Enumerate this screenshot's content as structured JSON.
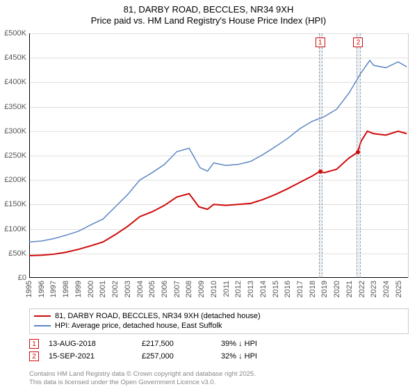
{
  "title": {
    "line1": "81, DARBY ROAD, BECCLES, NR34 9XH",
    "line2": "Price paid vs. HM Land Registry's House Price Index (HPI)",
    "fontsize": 13,
    "color": "#000000"
  },
  "chart": {
    "type": "line",
    "background_color": "#ffffff",
    "grid_color": "#e0e0e0",
    "axis_color": "#000000",
    "x": {
      "min": 1995,
      "max": 2025.8,
      "ticks": [
        1995,
        1996,
        1997,
        1998,
        1999,
        2000,
        2001,
        2002,
        2003,
        2004,
        2005,
        2006,
        2007,
        2008,
        2009,
        2010,
        2011,
        2012,
        2013,
        2014,
        2015,
        2016,
        2017,
        2018,
        2019,
        2020,
        2021,
        2022,
        2023,
        2024,
        2025
      ],
      "tick_labels": [
        "1995",
        "1996",
        "1997",
        "1998",
        "1999",
        "2000",
        "2001",
        "2002",
        "2003",
        "2004",
        "2005",
        "2006",
        "2007",
        "2008",
        "2009",
        "2010",
        "2011",
        "2012",
        "2013",
        "2014",
        "2015",
        "2016",
        "2017",
        "2018",
        "2019",
        "2020",
        "2021",
        "2022",
        "2023",
        "2024",
        "2025"
      ],
      "label_fontsize": 11,
      "label_rotation": -90
    },
    "y": {
      "min": 0,
      "max": 500000,
      "ticks": [
        0,
        50000,
        100000,
        150000,
        200000,
        250000,
        300000,
        350000,
        400000,
        450000,
        500000
      ],
      "tick_labels": [
        "£0",
        "£50K",
        "£100K",
        "£150K",
        "£200K",
        "£250K",
        "£300K",
        "£350K",
        "£400K",
        "£450K",
        "£500K"
      ],
      "label_fontsize": 11
    },
    "series": [
      {
        "name": "81, DARBY ROAD, BECCLES, NR34 9XH (detached house)",
        "color": "#cf0909",
        "line_width": 2,
        "data": [
          [
            1995,
            45000
          ],
          [
            1996,
            46000
          ],
          [
            1997,
            48000
          ],
          [
            1998,
            52000
          ],
          [
            1999,
            58000
          ],
          [
            2000,
            65000
          ],
          [
            2001,
            73000
          ],
          [
            2002,
            88000
          ],
          [
            2003,
            105000
          ],
          [
            2004,
            125000
          ],
          [
            2005,
            135000
          ],
          [
            2006,
            148000
          ],
          [
            2007,
            165000
          ],
          [
            2008,
            172000
          ],
          [
            2008.8,
            145000
          ],
          [
            2009.5,
            140000
          ],
          [
            2010,
            150000
          ],
          [
            2011,
            148000
          ],
          [
            2012,
            150000
          ],
          [
            2013,
            152000
          ],
          [
            2014,
            160000
          ],
          [
            2015,
            170000
          ],
          [
            2016,
            182000
          ],
          [
            2017,
            195000
          ],
          [
            2018,
            208000
          ],
          [
            2018.62,
            217500
          ],
          [
            2019,
            215000
          ],
          [
            2020,
            222000
          ],
          [
            2021,
            245000
          ],
          [
            2021.71,
            257000
          ],
          [
            2022,
            280000
          ],
          [
            2022.5,
            300000
          ],
          [
            2023,
            295000
          ],
          [
            2024,
            292000
          ],
          [
            2025,
            300000
          ],
          [
            2025.7,
            295000
          ]
        ]
      },
      {
        "name": "HPI: Average price, detached house, East Suffolk",
        "color": "#5b86c4",
        "line_width": 1.5,
        "data": [
          [
            1995,
            73000
          ],
          [
            1996,
            75000
          ],
          [
            1997,
            80000
          ],
          [
            1998,
            87000
          ],
          [
            1999,
            95000
          ],
          [
            2000,
            108000
          ],
          [
            2001,
            120000
          ],
          [
            2002,
            145000
          ],
          [
            2003,
            170000
          ],
          [
            2004,
            200000
          ],
          [
            2005,
            215000
          ],
          [
            2006,
            232000
          ],
          [
            2007,
            258000
          ],
          [
            2008,
            265000
          ],
          [
            2008.9,
            225000
          ],
          [
            2009.5,
            218000
          ],
          [
            2010,
            235000
          ],
          [
            2011,
            230000
          ],
          [
            2012,
            232000
          ],
          [
            2013,
            238000
          ],
          [
            2014,
            252000
          ],
          [
            2015,
            268000
          ],
          [
            2016,
            285000
          ],
          [
            2017,
            305000
          ],
          [
            2018,
            320000
          ],
          [
            2019,
            330000
          ],
          [
            2020,
            345000
          ],
          [
            2021,
            378000
          ],
          [
            2022,
            420000
          ],
          [
            2022.7,
            445000
          ],
          [
            2023,
            435000
          ],
          [
            2024,
            430000
          ],
          [
            2025,
            442000
          ],
          [
            2025.7,
            432000
          ]
        ]
      }
    ],
    "markers": [
      {
        "id": "1",
        "x": 2018.62,
        "y": 217500,
        "band_start": 2018.5,
        "band_end": 2018.74,
        "color": "#cf0909",
        "date": "13-AUG-2018",
        "price": "£217,500",
        "delta": "39% ↓ HPI"
      },
      {
        "id": "2",
        "x": 2021.71,
        "y": 257000,
        "band_start": 2021.55,
        "band_end": 2021.87,
        "color": "#cf0909",
        "date": "15-SEP-2021",
        "price": "£257,000",
        "delta": "32% ↓ HPI"
      }
    ]
  },
  "legend": {
    "border_color": "#cccccc",
    "fontsize": 11,
    "items": [
      {
        "label": "81, DARBY ROAD, BECCLES, NR34 9XH (detached house)",
        "color": "#cf0909"
      },
      {
        "label": "HPI: Average price, detached house, East Suffolk",
        "color": "#5b86c4"
      }
    ]
  },
  "footer": {
    "line1": "Contains HM Land Registry data © Crown copyright and database right 2025.",
    "line2": "This data is licensed under the Open Government Licence v3.0.",
    "color": "#888888",
    "fontsize": 9.5
  }
}
